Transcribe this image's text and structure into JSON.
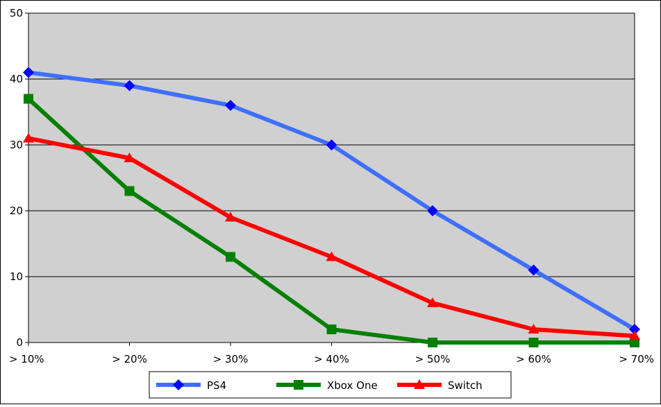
{
  "chart_data": {
    "type": "line",
    "categories": [
      "> 10%",
      "> 20%",
      "> 30%",
      "> 40%",
      "> 50%",
      "> 60%",
      "> 70%"
    ],
    "series": [
      {
        "name": "PS4",
        "values": [
          41,
          39,
          36,
          30,
          20,
          11,
          2
        ],
        "color": "#3f6fff",
        "marker": "diamond"
      },
      {
        "name": "Xbox One",
        "values": [
          37,
          23,
          13,
          2,
          0,
          0,
          0
        ],
        "color": "#008000",
        "marker": "square"
      },
      {
        "name": "Switch",
        "values": [
          31,
          28,
          19,
          13,
          6,
          2,
          1
        ],
        "color": "#ff0000",
        "marker": "triangle"
      }
    ],
    "ylim": [
      0,
      50
    ],
    "yticks": [
      0,
      10,
      20,
      30,
      40,
      50
    ],
    "title": "",
    "xlabel": "",
    "ylabel": "",
    "grid": "horizontal",
    "plot_background": "#d0d0d0",
    "legend_position": "bottom-center"
  }
}
